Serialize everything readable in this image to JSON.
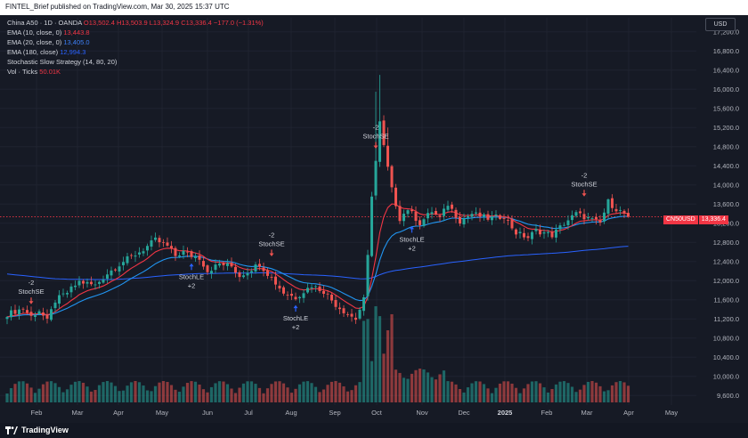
{
  "header": {
    "published": "FINTEL_Brief published on TradingView.com, Mar 30, 2025 15:37 UTC"
  },
  "legend": {
    "symbol_line": "China A50 · 1D · OANDA",
    "ohlc": {
      "o": "O13,502.4",
      "h": "H13,503.9",
      "l": "L13,324.9",
      "c": "C13,336.4",
      "chg": "−177.0 (−1.31%)"
    },
    "ema10_label": "EMA (10, close, 0)",
    "ema10_value": "13,443.8",
    "ema20_label": "EMA (20, close, 0)",
    "ema20_value": "13,405.0",
    "ema180_label": "EMA (180, close)",
    "ema180_value": "12,994.3",
    "strategy_label": "Stochastic Slow Strategy (14, 80, 20)",
    "vol_label": "Vol · Ticks",
    "vol_value": "50.01K"
  },
  "currency_button": "USD",
  "price_tag": {
    "symbol": "CN50USD",
    "value": "13,336.4"
  },
  "brand": "TradingView",
  "colors": {
    "up": "#26a69a",
    "down": "#ef5350",
    "ema10": "#f23645",
    "ema20": "#2196f3",
    "ema180": "#2962ff",
    "background": "#161a25"
  },
  "chart_data": {
    "type": "candlestick",
    "y_axis": {
      "range": [
        9400,
        17400
      ],
      "ticks": [
        "17,200.0",
        "16,800.0",
        "16,400.0",
        "16,000.0",
        "15,600.0",
        "15,200.0",
        "14,800.0",
        "14,400.0",
        "14,000.0",
        "13,600.0",
        "13,200.0",
        "12,800.0",
        "12,400.0",
        "12,000.0",
        "11,600.0",
        "11,200.0",
        "10,800.0",
        "10,400.0",
        "10,000.0",
        "9,600.0"
      ]
    },
    "x_axis": {
      "ticks": [
        "Feb",
        "Mar",
        "Apr",
        "May",
        "Jun",
        "Jul",
        "Aug",
        "Sep",
        "Oct",
        "Nov",
        "Dec",
        "2025",
        "Feb",
        "Mar",
        "Apr",
        "May"
      ]
    },
    "last_price": 13336.4,
    "close_path": [
      [
        0,
        11300
      ],
      [
        4,
        11420
      ],
      [
        6,
        11250
      ],
      [
        8,
        11380
      ],
      [
        10,
        11150
      ],
      [
        12,
        11580
      ],
      [
        15,
        11750
      ],
      [
        18,
        11980
      ],
      [
        22,
        11900
      ],
      [
        25,
        12150
      ],
      [
        29,
        12400
      ],
      [
        34,
        12650
      ],
      [
        37,
        12850
      ],
      [
        40,
        12720
      ],
      [
        42,
        12520
      ],
      [
        44,
        12600
      ],
      [
        46,
        12520
      ],
      [
        48,
        12480
      ],
      [
        50,
        12200
      ],
      [
        53,
        12350
      ],
      [
        56,
        12300
      ],
      [
        58,
        12100
      ],
      [
        60,
        12200
      ],
      [
        63,
        12350
      ],
      [
        66,
        12050
      ],
      [
        69,
        11750
      ],
      [
        72,
        11650
      ],
      [
        76,
        11900
      ],
      [
        79,
        11780
      ],
      [
        82,
        11500
      ],
      [
        85,
        11300
      ],
      [
        87,
        11200
      ],
      [
        89,
        11600
      ],
      [
        90,
        12500
      ],
      [
        91,
        13800
      ],
      [
        92,
        14500
      ],
      [
        93,
        15300
      ],
      [
        94,
        14800
      ],
      [
        96,
        13900
      ],
      [
        98,
        13300
      ],
      [
        100,
        13500
      ],
      [
        103,
        13200
      ],
      [
        106,
        13450
      ],
      [
        108,
        13300
      ],
      [
        110,
        13600
      ],
      [
        113,
        13250
      ],
      [
        116,
        13400
      ],
      [
        120,
        13300
      ],
      [
        124,
        13350
      ],
      [
        127,
        13000
      ],
      [
        130,
        12900
      ],
      [
        132,
        13050
      ],
      [
        136,
        12950
      ],
      [
        139,
        13200
      ],
      [
        142,
        13400
      ],
      [
        145,
        13300
      ],
      [
        148,
        13200
      ],
      [
        150,
        13650
      ],
      [
        152,
        13500
      ],
      [
        154,
        13400
      ],
      [
        155,
        13336.4
      ]
    ],
    "volume_bar_count": 160,
    "signals": [
      {
        "type": "entry",
        "label": "StochSE",
        "count": "-2",
        "bar": 6,
        "price": 11350
      },
      {
        "type": "exit",
        "label": "StochLE",
        "count": "+2",
        "bar": 46,
        "price": 12520
      },
      {
        "type": "entry",
        "label": "StochSE",
        "count": "-2",
        "bar": 66,
        "price": 12350
      },
      {
        "type": "exit",
        "label": "StochLE",
        "count": "+2",
        "bar": 72,
        "price": 11650
      },
      {
        "type": "entry",
        "label": "StochSE",
        "count": "-2",
        "bar": 92,
        "price": 14600
      },
      {
        "type": "exit",
        "label": "StochLE",
        "count": "+2",
        "bar": 101,
        "price": 13300
      },
      {
        "type": "entry",
        "label": "StochSE",
        "count": "-2",
        "bar": 144,
        "price": 13600
      }
    ]
  }
}
